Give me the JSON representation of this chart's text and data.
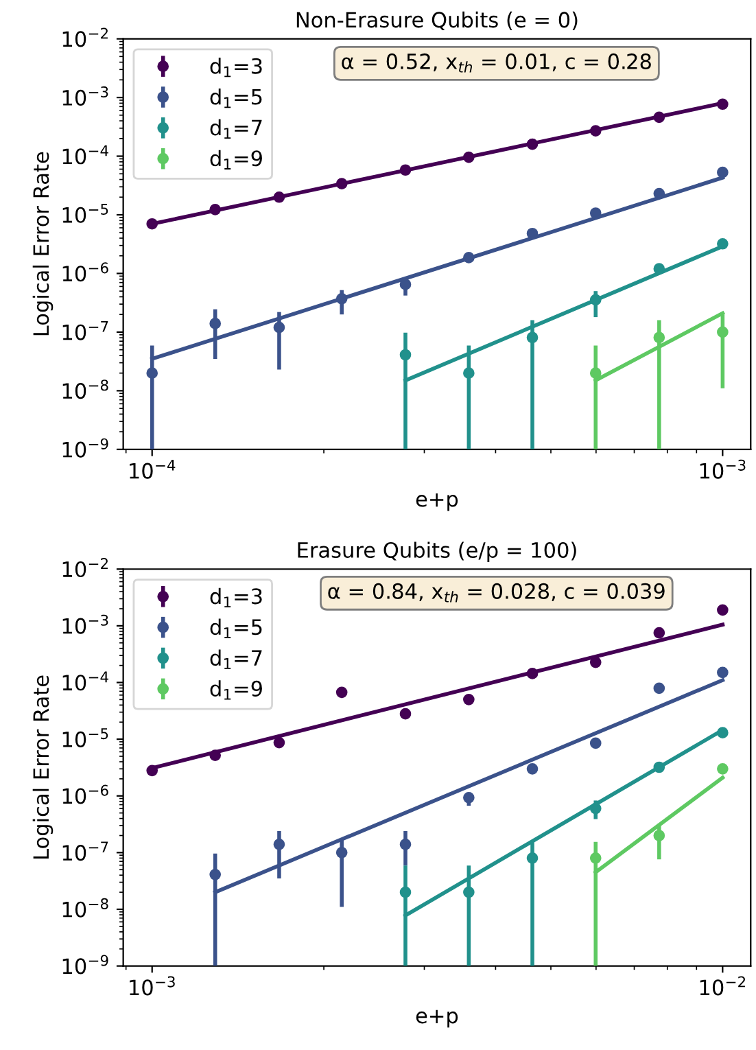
{
  "chart_data": [
    {
      "type": "scatter",
      "title": "Non-Erasure Qubits (e = 0)",
      "xlabel": "e+p",
      "ylabel": "Logical Error Rate",
      "log": "xy",
      "marker": "circle",
      "legend": "top left",
      "grid": false,
      "annotations": [
        "α = 0.52, x$_{th}$ = 0.01, c = 0.28"
      ],
      "x": [
        0.0001,
        0.000129,
        0.000167,
        0.000215,
        0.000278,
        0.000359,
        0.000464,
        0.000599,
        0.000774,
        0.001
      ],
      "xlim": [
        8.9e-05,
        0.00112
      ],
      "xticks": [
        {
          "value": 0.0001,
          "label": "10$^{−4}$"
        },
        {
          "value": 0.001,
          "label": "10$^{−3}$"
        }
      ],
      "ylim": [
        1e-09,
        0.01
      ],
      "yticks": [
        {
          "value": 1e-09,
          "label": "10$^{−9}$"
        },
        {
          "value": 1e-08,
          "label": "10$^{−8}$"
        },
        {
          "value": 1e-07,
          "label": "10$^{−7}$"
        },
        {
          "value": 1e-06,
          "label": "10$^{−6}$"
        },
        {
          "value": 1e-05,
          "label": "10$^{−5}$"
        },
        {
          "value": 0.0001,
          "label": "10$^{−4}$"
        },
        {
          "value": 0.001,
          "label": "10$^{−3}$"
        },
        {
          "value": 0.01,
          "label": "10$^{−2}$"
        }
      ],
      "series": [
        {
          "name": "d$_{1}$=3",
          "color": "#440154",
          "values": [
            7e-06,
            1.23e-05,
            2e-05,
            3.4e-05,
            5.8e-05,
            9.6e-05,
            0.00016,
            0.00027,
            0.00046,
            0.00077
          ]
        },
        {
          "name": "d$_{1}$=5",
          "color": "#3b528b",
          "values": [
            2e-08,
            1.4e-07,
            1.2e-07,
            3.7e-07,
            6.5e-07,
            1.86e-06,
            4.8e-06,
            1.07e-05,
            2.3e-05,
            5.3e-05
          ],
          "errors": [
            [
              1e-09,
              5.9e-08
            ],
            [
              3.5e-08,
              2.45e-07
            ],
            [
              2.3e-08,
              2.2e-07
            ],
            [
              2e-07,
              5.2e-07
            ],
            [
              4.2e-07,
              7.8e-07
            ],
            null,
            null,
            null,
            null,
            null
          ]
        },
        {
          "name": "d$_{1}$=7",
          "color": "#21918c",
          "values": [
            null,
            null,
            null,
            null,
            4.1e-08,
            2e-08,
            8.1e-08,
            3.55e-07,
            1.2e-06,
            3.2e-06
          ],
          "errors": [
            null,
            null,
            null,
            null,
            [
              1e-09,
              9.8e-08
            ],
            [
              1e-09,
              5.9e-08
            ],
            [
              1e-09,
              1.6e-07
            ],
            [
              1.8e-07,
              5e-07
            ],
            null,
            null
          ]
        },
        {
          "name": "d$_{1}$=9",
          "color": "#5ec962",
          "values": [
            null,
            null,
            null,
            null,
            null,
            null,
            null,
            2e-08,
            8.1e-08,
            1e-07
          ],
          "errors": [
            null,
            null,
            null,
            null,
            null,
            null,
            null,
            [
              1e-09,
              5.9e-08
            ],
            [
              1e-09,
              1.6e-07
            ],
            [
              1.1e-08,
              2e-07
            ]
          ]
        },
        {
          "type": "line",
          "marker": "none",
          "color": "#440154",
          "x": [
            0.0001,
            0.001
          ],
          "values": [
            7e-06,
            0.0008
          ]
        },
        {
          "type": "line",
          "marker": "none",
          "color": "#3b528b",
          "x": [
            0.0001,
            0.001
          ],
          "values": [
            3.5e-08,
            4.3e-05
          ]
        },
        {
          "type": "line",
          "marker": "none",
          "color": "#21918c",
          "x": [
            0.000278,
            0.001
          ],
          "values": [
            1.5e-08,
            2.9e-06
          ]
        },
        {
          "type": "line",
          "marker": "none",
          "color": "#5ec962",
          "x": [
            0.000599,
            0.001
          ],
          "values": [
            1.5e-08,
            2.1e-07
          ]
        }
      ]
    },
    {
      "type": "scatter",
      "title": "Erasure Qubits (e/p = 100)",
      "xlabel": "e+p",
      "ylabel": "Logical Error Rate",
      "log": "xy",
      "marker": "circle",
      "legend": "top left",
      "grid": false,
      "annotations": [
        "α = 0.84, x$_{th}$ = 0.028, c = 0.039"
      ],
      "x": [
        0.001,
        0.00129,
        0.00167,
        0.00215,
        0.00278,
        0.00359,
        0.00464,
        0.00599,
        0.00774,
        0.01
      ],
      "xlim": [
        0.00089,
        0.0112
      ],
      "xticks": [
        {
          "value": 0.001,
          "label": "10$^{−3}$"
        },
        {
          "value": 0.01,
          "label": "10$^{−2}$"
        }
      ],
      "ylim": [
        1e-09,
        0.01
      ],
      "yticks": [
        {
          "value": 1e-09,
          "label": "10$^{−9}$"
        },
        {
          "value": 1e-08,
          "label": "10$^{−8}$"
        },
        {
          "value": 1e-07,
          "label": "10$^{−7}$"
        },
        {
          "value": 1e-06,
          "label": "10$^{−6}$"
        },
        {
          "value": 1e-05,
          "label": "10$^{−5}$"
        },
        {
          "value": 0.0001,
          "label": "10$^{−4}$"
        },
        {
          "value": 0.001,
          "label": "10$^{−3}$"
        },
        {
          "value": 0.01,
          "label": "10$^{−2}$"
        }
      ],
      "series": [
        {
          "name": "d$_{1}$=3",
          "color": "#440154",
          "values": [
            2.8e-06,
            5.2e-06,
            8.7e-06,
            6.7e-05,
            2.8e-05,
            5e-05,
            0.000144,
            0.000227,
            0.00075,
            0.0019
          ]
        },
        {
          "name": "d$_{1}$=5",
          "color": "#3b528b",
          "values": [
            null,
            4.1e-08,
            1.4e-07,
            1e-07,
            1.4e-07,
            9.3e-07,
            3e-06,
            8.5e-06,
            7.9e-05,
            0.00015
          ],
          "errors": [
            null,
            [
              1e-09,
              9.6e-08
            ],
            [
              3.5e-08,
              2.4e-07
            ],
            [
              1.1e-08,
              1.7e-07
            ],
            [
              5.9e-08,
              2.4e-07
            ],
            [
              6.7e-07,
              1.15e-06
            ],
            null,
            null,
            null,
            null
          ]
        },
        {
          "name": "d$_{1}$=7",
          "color": "#21918c",
          "values": [
            null,
            null,
            null,
            null,
            2e-08,
            2e-08,
            8e-08,
            6e-07,
            3.2e-06,
            1.3e-05
          ],
          "errors": [
            null,
            null,
            null,
            null,
            [
              1e-09,
              5.9e-08
            ],
            [
              1e-09,
              5.9e-08
            ],
            [
              1e-09,
              1.55e-07
            ],
            [
              3.9e-07,
              8.3e-07
            ],
            null,
            null
          ]
        },
        {
          "name": "d$_{1}$=9",
          "color": "#5ec962",
          "values": [
            null,
            null,
            null,
            null,
            null,
            null,
            null,
            8e-08,
            2e-07,
            3e-06
          ],
          "errors": [
            null,
            null,
            null,
            null,
            null,
            null,
            null,
            [
              1e-09,
              1.55e-07
            ],
            [
              7.6e-08,
              3.2e-07
            ],
            null
          ]
        },
        {
          "type": "line",
          "marker": "none",
          "color": "#440154",
          "x": [
            0.001,
            0.01
          ],
          "values": [
            3.1e-06,
            0.00105
          ]
        },
        {
          "type": "line",
          "marker": "none",
          "color": "#3b528b",
          "x": [
            0.00129,
            0.01
          ],
          "values": [
            2e-08,
            0.00011
          ]
        },
        {
          "type": "line",
          "marker": "none",
          "color": "#21918c",
          "x": [
            0.00278,
            0.01
          ],
          "values": [
            7.8e-09,
            1.45e-05
          ]
        },
        {
          "type": "line",
          "marker": "none",
          "color": "#5ec962",
          "x": [
            0.00599,
            0.01
          ],
          "values": [
            4.5e-08,
            2.1e-06
          ]
        }
      ]
    }
  ]
}
